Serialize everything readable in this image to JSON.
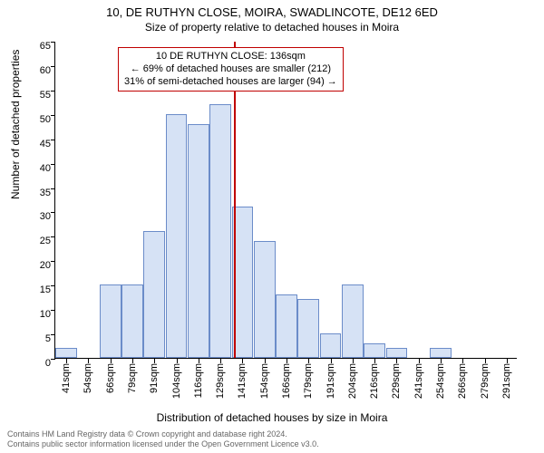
{
  "title": "10, DE RUTHYN CLOSE, MOIRA, SWADLINCOTE, DE12 6ED",
  "subtitle": "Size of property relative to detached houses in Moira",
  "ylabel": "Number of detached properties",
  "xlabel": "Distribution of detached houses by size in Moira",
  "footer1": "Contains HM Land Registry data © Crown copyright and database right 2024.",
  "footer2": "Contains public sector information licensed under the Open Government Licence v3.0.",
  "chart": {
    "type": "histogram",
    "bar_fill": "#d6e2f5",
    "bar_stroke": "#6b8cc9",
    "vline_color": "#c00000",
    "background": "#ffffff",
    "ylim": [
      0,
      65
    ],
    "ytick_step": 5,
    "xtick_labels": [
      "41sqm",
      "54sqm",
      "66sqm",
      "79sqm",
      "91sqm",
      "104sqm",
      "116sqm",
      "129sqm",
      "141sqm",
      "154sqm",
      "166sqm",
      "179sqm",
      "191sqm",
      "204sqm",
      "216sqm",
      "229sqm",
      "241sqm",
      "254sqm",
      "266sqm",
      "279sqm",
      "291sqm"
    ],
    "values": [
      2,
      0,
      15,
      15,
      26,
      50,
      48,
      52,
      31,
      24,
      13,
      12,
      5,
      15,
      3,
      2,
      0,
      2,
      0,
      0,
      0
    ],
    "vline_index": 7.6,
    "bar_width_ratio": 0.98,
    "title_fontsize": 13,
    "label_fontsize": 12,
    "tick_fontsize": 11
  },
  "callout": {
    "line1": "10 DE RUTHYN CLOSE: 136sqm",
    "line2": "← 69% of detached houses are smaller (212)",
    "line3": "31% of semi-detached houses are larger (94) →"
  }
}
